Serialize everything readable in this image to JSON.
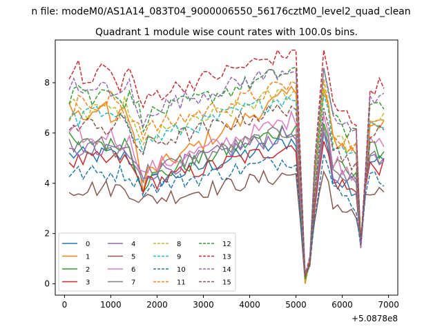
{
  "figure": {
    "suptitle": "n file: modeM0/AS1A14_083T04_9000006550_56176cztM0_level2_quad_clean",
    "offset_label": "+5.0878e8"
  },
  "chart_data": {
    "type": "line",
    "title": "Quadrant 1 module wise count rates with 100.0s bins.",
    "xlabel": "",
    "ylabel": "",
    "xlim": [
      -200,
      7200
    ],
    "ylim": [
      -0.45,
      9.7
    ],
    "x_ticks": [
      0,
      1000,
      2000,
      3000,
      4000,
      5000,
      6000,
      7000
    ],
    "y_ticks": [
      0,
      2,
      4,
      6,
      8
    ],
    "x_offset": 508780000,
    "grid": false,
    "legend_placement": "lower-left",
    "legend_columns": 4,
    "x": [
      100,
      200,
      300,
      400,
      500,
      600,
      700,
      800,
      900,
      1000,
      1100,
      1200,
      1300,
      1400,
      1500,
      1600,
      1700,
      1800,
      1900,
      2000,
      2100,
      2200,
      2300,
      2400,
      2500,
      2600,
      2700,
      2800,
      2900,
      3000,
      3100,
      3200,
      3300,
      3400,
      3500,
      3600,
      3700,
      3800,
      3900,
      4000,
      4100,
      4200,
      4300,
      4400,
      4500,
      4600,
      4700,
      4800,
      4900,
      5000,
      5100,
      5200,
      5300,
      5400,
      5500,
      5600,
      5700,
      5800,
      5900,
      6000,
      6100,
      6200,
      6300,
      6400,
      6500,
      6600,
      6700,
      6800,
      6900
    ],
    "series": [
      {
        "name": "0",
        "color": "#1f77b4",
        "style": "solid",
        "base": 5.1,
        "dip": 3.9,
        "bias": 0.05
      },
      {
        "name": "1",
        "color": "#ff7f0e",
        "style": "solid",
        "base": 6.8,
        "dip": 4.0,
        "bias": 0.3
      },
      {
        "name": "2",
        "color": "#2ca02c",
        "style": "solid",
        "base": 5.6,
        "dip": 4.0,
        "bias": 0.1
      },
      {
        "name": "3",
        "color": "#d62728",
        "style": "solid",
        "base": 4.9,
        "dip": 3.9,
        "bias": 0.05
      },
      {
        "name": "4",
        "color": "#9467bd",
        "style": "solid",
        "base": 5.3,
        "dip": 4.2,
        "bias": 0.15
      },
      {
        "name": "5",
        "color": "#8c564b",
        "style": "solid",
        "base": 3.8,
        "dip": 3.3,
        "bias": 0.0
      },
      {
        "name": "6",
        "color": "#e377c2",
        "style": "solid",
        "base": 5.8,
        "dip": 4.3,
        "bias": 0.2
      },
      {
        "name": "7",
        "color": "#7f7f7f",
        "style": "solid",
        "base": 5.4,
        "dip": 4.3,
        "bias": 0.15
      },
      {
        "name": "8",
        "color": "#bcbd22",
        "style": "dashed",
        "base": 6.9,
        "dip": 5.5,
        "bias": 0.25
      },
      {
        "name": "9",
        "color": "#17becf",
        "style": "dashed",
        "base": 6.7,
        "dip": 5.4,
        "bias": 0.25
      },
      {
        "name": "10",
        "color": "#1f77b4",
        "style": "dashed",
        "base": 4.4,
        "dip": 3.8,
        "bias": 0.0
      },
      {
        "name": "11",
        "color": "#ff7f0e",
        "style": "dashed",
        "base": 7.1,
        "dip": 5.8,
        "bias": 0.3
      },
      {
        "name": "12",
        "color": "#2ca02c",
        "style": "dashed",
        "base": 7.6,
        "dip": 6.3,
        "bias": 0.35
      },
      {
        "name": "13",
        "color": "#d62728",
        "style": "dashed",
        "base": 8.3,
        "dip": 7.0,
        "bias": 0.4
      },
      {
        "name": "14",
        "color": "#9467bd",
        "style": "dashed",
        "base": 7.7,
        "dip": 6.5,
        "bias": 0.35
      },
      {
        "name": "15",
        "color": "#8c564b",
        "style": "dashed",
        "base": 6.3,
        "dip": 5.3,
        "bias": 0.2
      }
    ]
  }
}
